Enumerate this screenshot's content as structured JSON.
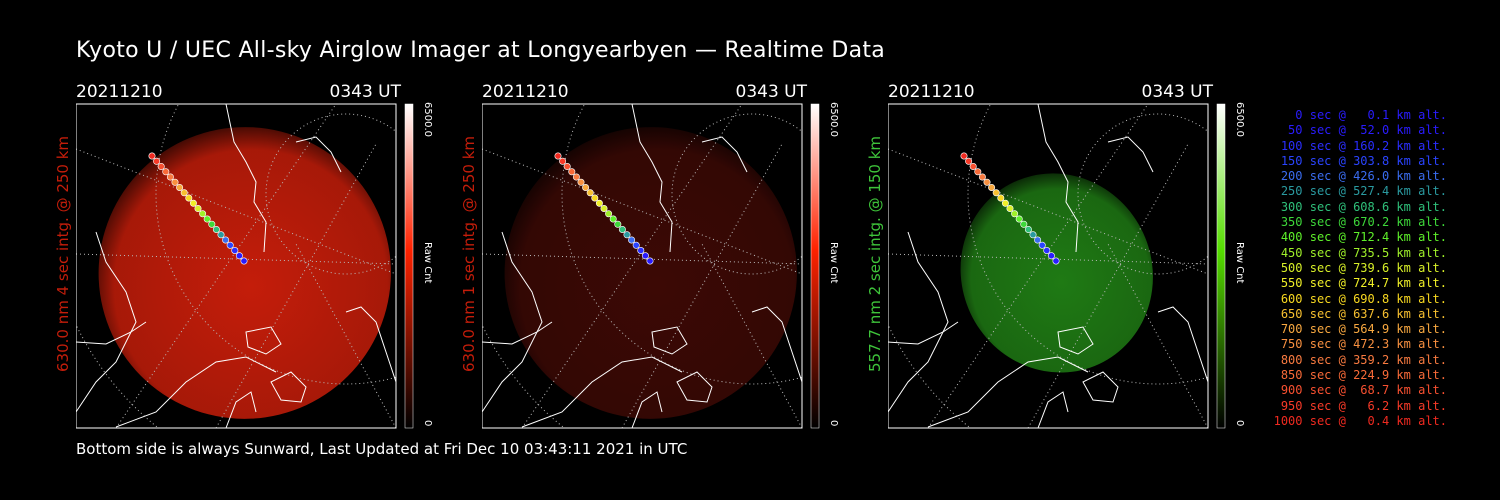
{
  "title": "Kyoto U / UEC All-sky Airglow Imager at Longyearbyen — Realtime Data",
  "footer": "Bottom side is always Sunward, Last Updated at Fri Dec 10 03:43:11 2021 in UTC",
  "colorbar": {
    "max": "6500.0",
    "min": "0",
    "label": "Raw Cnt"
  },
  "panels": [
    {
      "date": "20211210",
      "time": "0343 UT",
      "side_label": "630.0 nm 4 sec intg. @ 250 km",
      "color": "#c41d0a",
      "bar_color": "#ff2200"
    },
    {
      "date": "20211210",
      "time": "0343 UT",
      "side_label": "630.0 nm 1 sec intg. @ 250 km",
      "color": "#3c0905",
      "bar_color": "#ff2200"
    },
    {
      "date": "20211210",
      "time": "0343 UT",
      "side_label": "557.7 nm 2 sec intg. @ 150 km",
      "color": "#1f7a14",
      "bar_color": "#55dd00"
    }
  ],
  "legend": [
    {
      "text": "0 sec @   0.1 km alt.",
      "color": "#2a1cff"
    },
    {
      "text": "50 sec @  52.0 km alt.",
      "color": "#2a1cff"
    },
    {
      "text": "100 sec @ 160.2 km alt.",
      "color": "#2a2eff"
    },
    {
      "text": "150 sec @ 303.8 km alt.",
      "color": "#2a44ff"
    },
    {
      "text": "200 sec @ 426.0 km alt.",
      "color": "#3a6cf0"
    },
    {
      "text": "250 sec @ 527.4 km alt.",
      "color": "#2a9aa0"
    },
    {
      "text": "300 sec @ 608.6 km alt.",
      "color": "#2fc07a"
    },
    {
      "text": "350 sec @ 670.2 km alt.",
      "color": "#3ed83a"
    },
    {
      "text": "400 sec @ 712.4 km alt.",
      "color": "#5ef02a"
    },
    {
      "text": "450 sec @ 735.5 km alt.",
      "color": "#a0f02a"
    },
    {
      "text": "500 sec @ 739.6 km alt.",
      "color": "#d8f028"
    },
    {
      "text": "550 sec @ 724.7 km alt.",
      "color": "#f0f028"
    },
    {
      "text": "600 sec @ 690.8 km alt.",
      "color": "#f8d820"
    },
    {
      "text": "650 sec @ 637.6 km alt.",
      "color": "#f8c030"
    },
    {
      "text": "700 sec @ 564.9 km alt.",
      "color": "#f8a840"
    },
    {
      "text": "750 sec @ 472.3 km alt.",
      "color": "#f89040"
    },
    {
      "text": "800 sec @ 359.2 km alt.",
      "color": "#f87a40"
    },
    {
      "text": "850 sec @ 224.9 km alt.",
      "color": "#f86a38"
    },
    {
      "text": "900 sec @  68.7 km alt.",
      "color": "#f85030"
    },
    {
      "text": "950 sec @   6.2 km alt.",
      "color": "#f83a28"
    },
    {
      "text": "1000 sec @   0.4 km alt.",
      "color": "#f02a20"
    }
  ],
  "chart_data": {
    "type": "scatter",
    "title": "Kyoto U / UEC All-sky Airglow Imager at Longyearbyen — Realtime Data",
    "x": [
      0,
      50,
      100,
      150,
      200,
      250,
      300,
      350,
      400,
      450,
      500,
      550,
      600,
      650,
      700,
      750,
      800,
      850,
      900,
      950,
      1000
    ],
    "y": [
      0.1,
      52.0,
      160.2,
      303.8,
      426.0,
      527.4,
      608.6,
      670.2,
      712.4,
      735.5,
      739.6,
      724.7,
      690.8,
      637.6,
      564.9,
      472.3,
      359.2,
      224.9,
      68.7,
      6.2,
      0.4
    ],
    "xlabel": "sec",
    "ylabel": "km alt.",
    "colorbar_range": [
      0,
      6500.0
    ]
  }
}
